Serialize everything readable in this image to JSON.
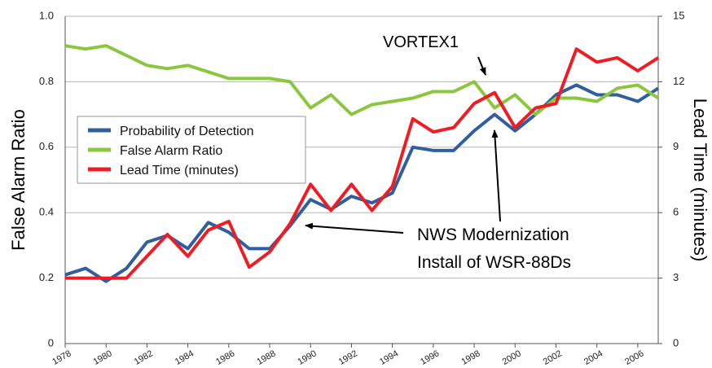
{
  "chart_data": {
    "type": "line",
    "ylabel": "False Alarm Ratio",
    "y2label": "Lead Time (minutes)",
    "x": [
      1978,
      1979,
      1980,
      1981,
      1982,
      1983,
      1984,
      1985,
      1986,
      1987,
      1988,
      1989,
      1990,
      1991,
      1992,
      1993,
      1994,
      1995,
      1996,
      1997,
      1998,
      1999,
      2000,
      2001,
      2002,
      2003,
      2004,
      2005,
      2006,
      2007
    ],
    "series": [
      {
        "name": "Probability of Detection",
        "color": "#2f5f9e",
        "values": [
          0.21,
          0.23,
          0.19,
          0.23,
          0.31,
          0.33,
          0.29,
          0.37,
          0.34,
          0.29,
          0.29,
          0.36,
          0.44,
          0.41,
          0.45,
          0.43,
          0.46,
          0.6,
          0.59,
          0.59,
          0.65,
          0.7,
          0.65,
          0.7,
          0.76,
          0.79,
          0.76,
          0.76,
          0.74,
          0.78
        ]
      },
      {
        "name": "False Alarm Ratio",
        "color": "#8cc63f",
        "values": [
          0.91,
          0.9,
          0.91,
          0.88,
          0.85,
          0.84,
          0.85,
          0.83,
          0.81,
          0.81,
          0.81,
          0.8,
          0.72,
          0.76,
          0.7,
          0.73,
          0.74,
          0.75,
          0.77,
          0.77,
          0.8,
          0.72,
          0.76,
          0.7,
          0.75,
          0.75,
          0.74,
          0.78,
          0.79,
          0.75
        ]
      },
      {
        "name": "Lead Time (minutes)",
        "color": "#ee1c25",
        "axis": "y2",
        "values": [
          3,
          3,
          3,
          3,
          4,
          5,
          4,
          5.2,
          5.6,
          3.5,
          4.2,
          5.5,
          7.3,
          6.1,
          7.3,
          6.1,
          7.2,
          10.3,
          9.7,
          9.9,
          11.0,
          11.5,
          9.9,
          10.8,
          11.0,
          13.5,
          12.9,
          13.1,
          12.5,
          13.1
        ]
      }
    ],
    "xlim": [
      1978,
      2007
    ],
    "xticks": [
      1978,
      1980,
      1982,
      1984,
      1986,
      1988,
      1990,
      1992,
      1994,
      1996,
      1998,
      2000,
      2002,
      2004,
      2006
    ],
    "ylim": [
      0,
      1
    ],
    "yticks": [
      0,
      0.2,
      0.4,
      0.6,
      0.8,
      {
        "value": 1,
        "label": "1.0"
      }
    ],
    "y2lim": [
      0,
      15
    ],
    "y2ticks": [
      0,
      3,
      6,
      9,
      12,
      15
    ],
    "grid": true,
    "legend": "center left",
    "annotations": [
      "VORTEX1",
      "NWS Modernization",
      "Install of WSR-88Ds"
    ]
  }
}
